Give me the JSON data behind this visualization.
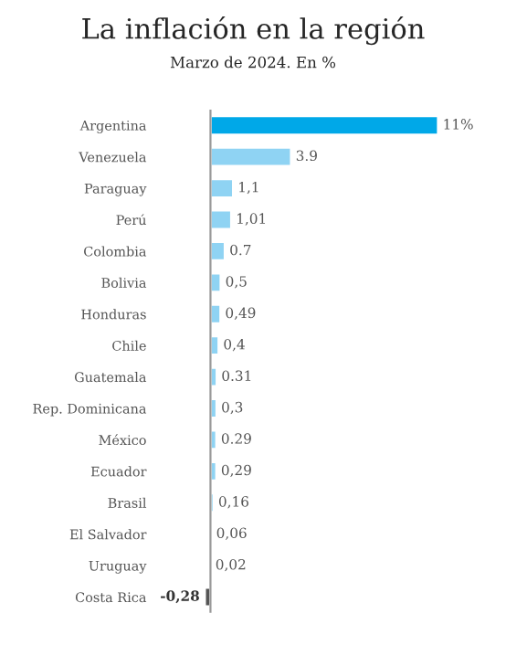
{
  "chart_data": {
    "type": "bar",
    "orientation": "horizontal",
    "title": "La inflación en la región",
    "subtitle": "Marzo de 2024. En %",
    "categories": [
      "Argentina",
      "Venezuela",
      "Paraguay",
      "Perú",
      "Colombia",
      "Bolivia",
      "Honduras",
      "Chile",
      "Guatemala",
      "Rep. Dominicana",
      "México",
      "Ecuador",
      "Brasil",
      "El Salvador",
      "Uruguay",
      "Costa Rica"
    ],
    "values": [
      11,
      3.9,
      1.1,
      1.01,
      0.7,
      0.5,
      0.49,
      0.4,
      0.31,
      0.3,
      0.29,
      0.29,
      0.16,
      0.06,
      0.02,
      -0.28
    ],
    "colors": [
      "#00a8e8",
      "#8fd3f3",
      "#8fd3f3",
      "#8fd3f3",
      "#8fd3f3",
      "#8fd3f3",
      "#8fd3f3",
      "#8fd3f3",
      "#8fd3f3",
      "#8fd3f3",
      "#8fd3f3",
      "#8fd3f3",
      "#8fd3f3",
      "#8fd3f3",
      "#8fd3f3",
      "#555555"
    ],
    "value_labels": [
      "11%",
      "3.9",
      "1,1",
      "1,01",
      "0.7",
      "0,5",
      "0,49",
      "0,4",
      "0.31",
      "0,3",
      "0.29",
      "0,29",
      "0,16",
      "0,06",
      "0,02",
      "-0,28"
    ],
    "grid": false
  }
}
